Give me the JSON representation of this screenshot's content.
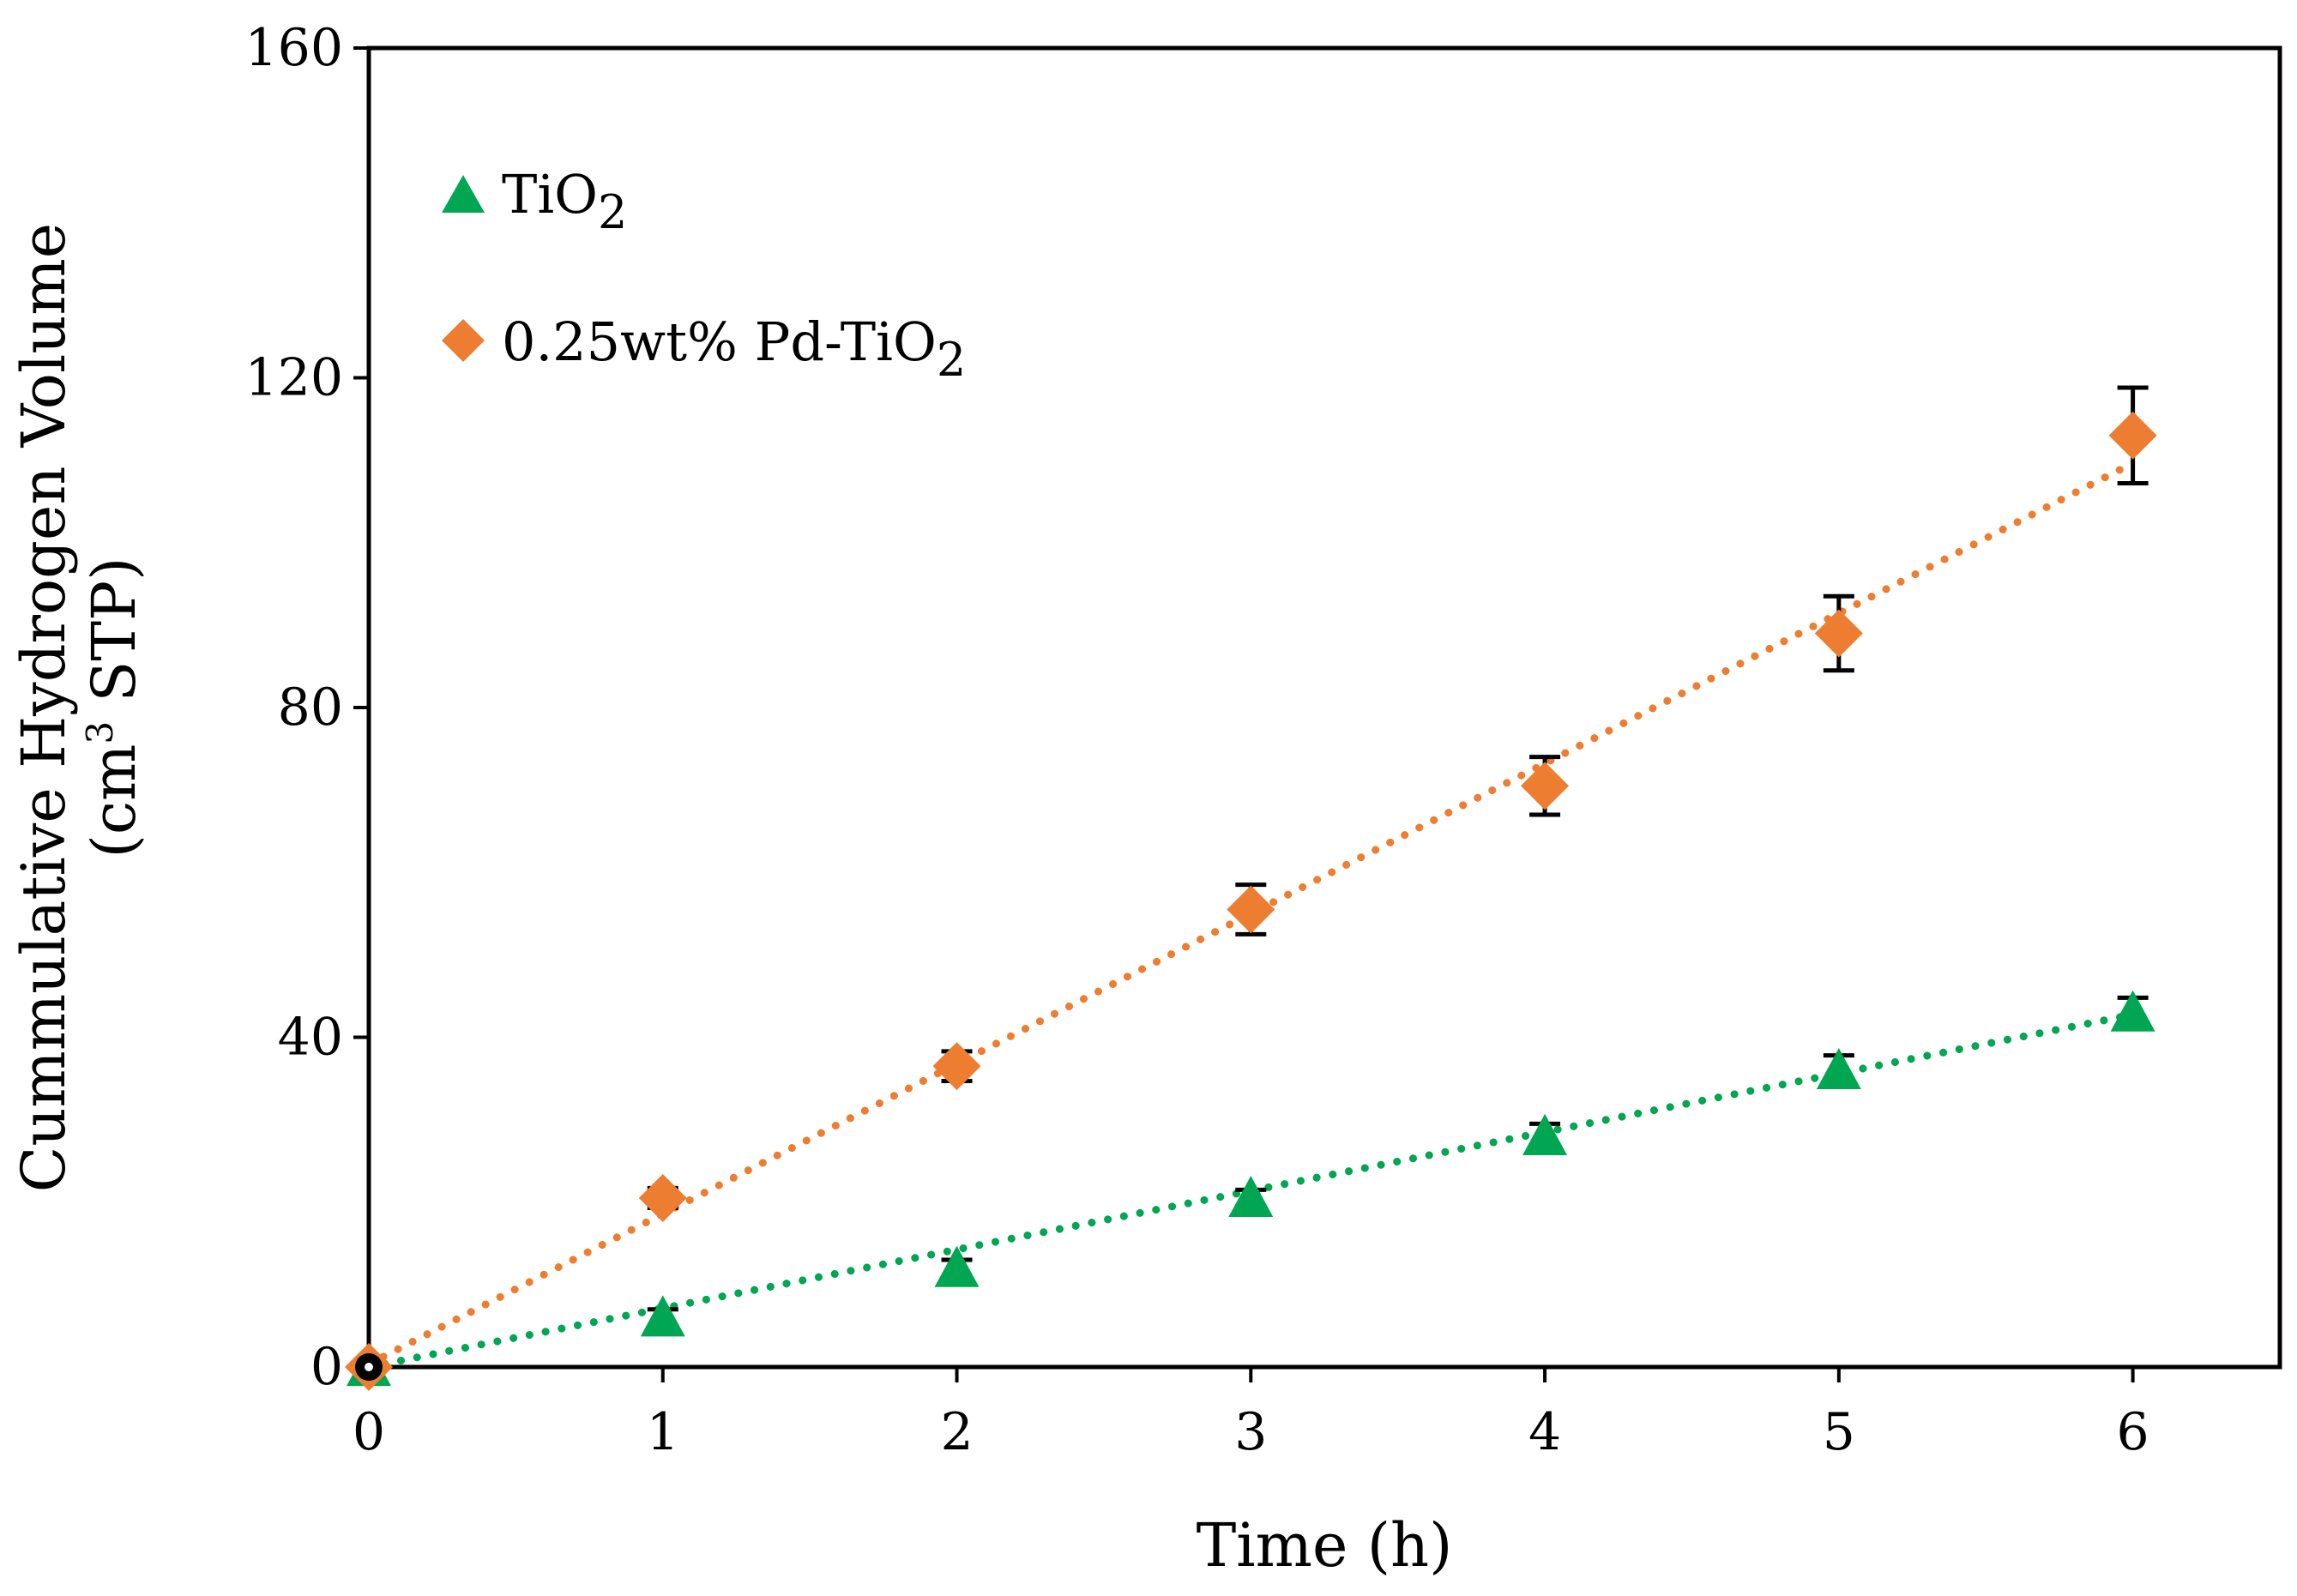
{
  "chart_data": {
    "type": "scatter",
    "title": "",
    "xlabel": "Time (h)",
    "ylabel_line1": "Cummulative Hydrogen Volume",
    "ylabel_line2_prefix": "(cm",
    "ylabel_line2_sup": "3",
    "ylabel_line2_suffix": " STP)",
    "xlim": [
      0,
      6.5
    ],
    "ylim": [
      0,
      160
    ],
    "xticks": [
      0,
      1,
      2,
      3,
      4,
      5,
      6
    ],
    "yticks": [
      0,
      40,
      80,
      120,
      160
    ],
    "grid": false,
    "legend_position": "top-left",
    "series": [
      {
        "name": "TiO",
        "name_sub": "2",
        "marker": "triangle",
        "color": "#00a651",
        "trendline": "linear",
        "x": [
          0,
          1,
          2,
          3,
          4,
          5,
          6
        ],
        "y": [
          0,
          6,
          12,
          20.5,
          28,
          36,
          43
        ],
        "error": [
          0,
          1,
          1,
          1,
          1.5,
          1.8,
          1.8
        ]
      },
      {
        "name": "0.25wt% Pd-TiO",
        "name_sub": "2",
        "marker": "diamond",
        "color": "#ed7d31",
        "trendline": "linear",
        "x": [
          0,
          1,
          2,
          3,
          4,
          5,
          6
        ],
        "y": [
          0,
          20.5,
          36.5,
          55.5,
          70.5,
          89,
          113
        ],
        "error": [
          0,
          1.2,
          1.8,
          3,
          3.5,
          4.5,
          5.8
        ]
      }
    ],
    "origin_marker": {
      "x": 0,
      "y": 0,
      "color": "#000000"
    }
  }
}
